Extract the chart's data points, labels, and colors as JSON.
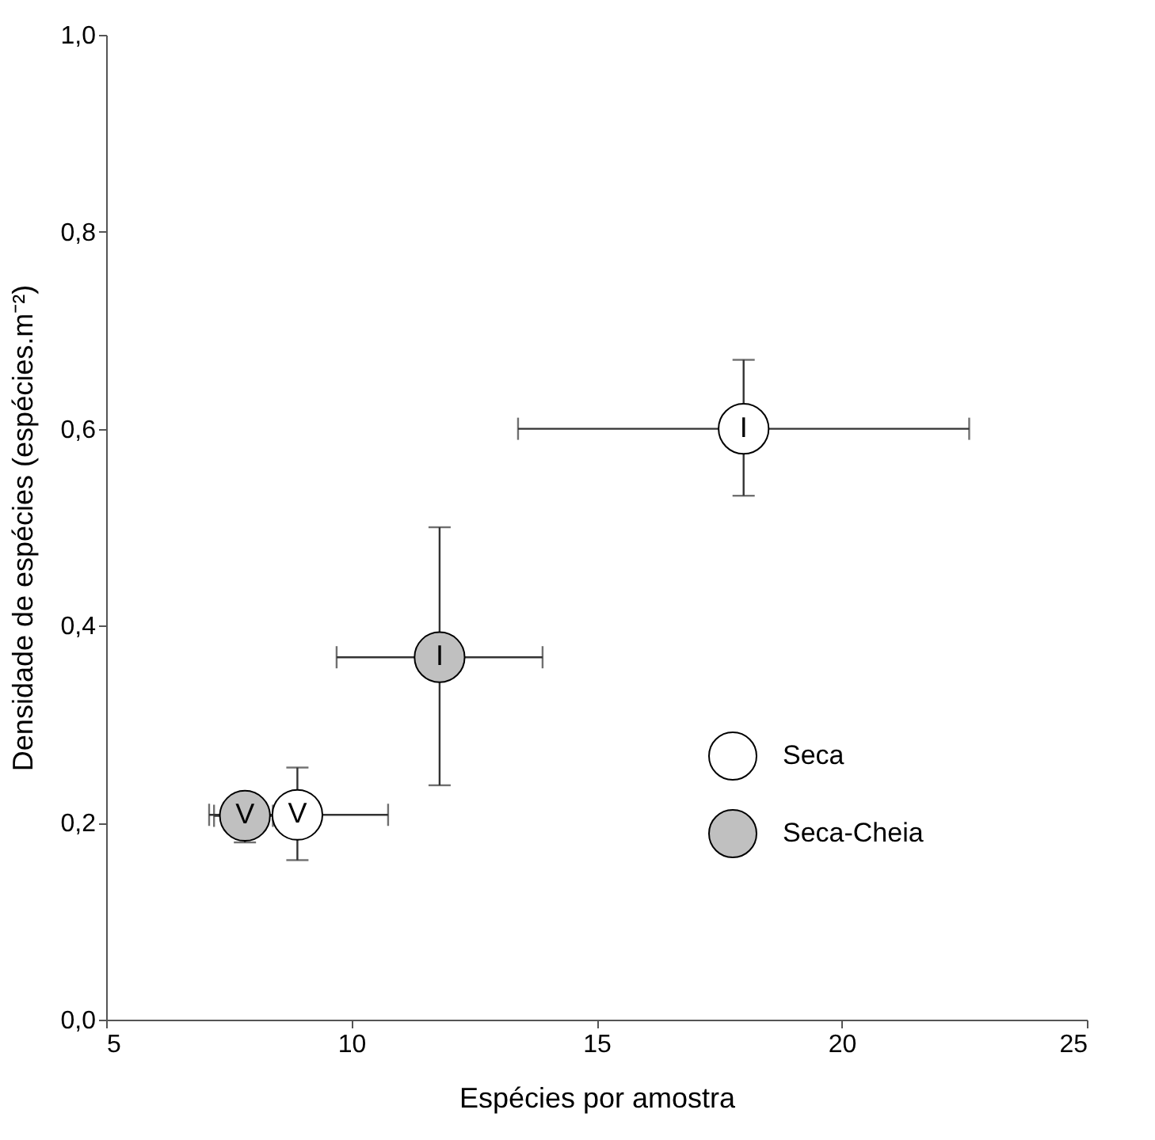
{
  "chart_data": {
    "type": "scatter",
    "xlabel": "Espécies por amostra",
    "ylabel": "Densidade de espécies (espécies.m⁻²)",
    "xlim": [
      5,
      25
    ],
    "xticks": [
      5,
      10,
      15,
      20,
      25
    ],
    "ylim": [
      0,
      1.0
    ],
    "yticks": [
      {
        "value": 0,
        "label": "0,0"
      },
      {
        "value": 0.2,
        "label": "0,2"
      },
      {
        "value": 0.4,
        "label": "0,4"
      },
      {
        "value": 0.6,
        "label": "0,6"
      },
      {
        "value": 0.8,
        "label": "0,8"
      },
      {
        "value": 1.0,
        "label": "1,0"
      }
    ],
    "grid": false,
    "legend": "bottom right",
    "marker": "circle",
    "series": [
      {
        "name": "Seca",
        "color": "#ffffff",
        "x": [
          18.0,
          8.9
        ],
        "values": [
          0.6,
          0.208
        ],
        "errors": [
          [
            0.532,
            0.67
          ],
          [
            0.162,
            0.256
          ]
        ],
        "xerrors": [
          [
            13.4,
            22.6
          ],
          [
            7.1,
            10.75
          ]
        ]
      },
      {
        "name": "Seca-Cheia",
        "color": "#c0c0c0",
        "x": [
          11.8,
          7.83
        ],
        "values": [
          0.368,
          0.207
        ],
        "errors": [
          [
            0.238,
            0.5
          ],
          [
            0.18,
            0.23
          ]
        ],
        "xerrors": [
          [
            9.7,
            13.9
          ],
          [
            7.2,
            8.4
          ]
        ]
      }
    ],
    "annotations": [
      {
        "text": "I",
        "x": 18.0,
        "y": 0.6
      },
      {
        "text": "V",
        "x": 8.9,
        "y": 0.208
      },
      {
        "text": "I",
        "x": 11.8,
        "y": 0.368
      },
      {
        "text": "V",
        "x": 7.83,
        "y": 0.207
      }
    ]
  }
}
